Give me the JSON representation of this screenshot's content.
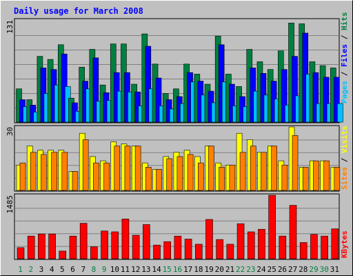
{
  "title": "Daily usage for March 2008",
  "colors": {
    "background": "#c0c0c0",
    "title": "#0000ff",
    "hits": "#008040",
    "files": "#0000ff",
    "pages": "#00c0ff",
    "visits": "#ffff00",
    "sites": "#ff8000",
    "kbytes": "#ff0000",
    "weekday_label": "#000000",
    "weekend_label": "#008040"
  },
  "legend": {
    "pages": "Pages",
    "files": "Files",
    "hits": "Hits",
    "sites": "Sites",
    "visits": "Visits",
    "kbytes": "KBytes",
    "sep": " / "
  },
  "chart_data": [
    {
      "type": "bar",
      "title": "Daily usage for March 2008",
      "panel": "hits-files-pages",
      "ymax_label": "131",
      "ylim": [
        0,
        131
      ],
      "categories": [
        "1",
        "2",
        "3",
        "4",
        "5",
        "6",
        "7",
        "8",
        "9",
        "10",
        "11",
        "12",
        "13",
        "14",
        "15",
        "16",
        "17",
        "18",
        "19",
        "20",
        "21",
        "22",
        "23",
        "24",
        "25",
        "26",
        "27",
        "28",
        "29",
        "30",
        "31"
      ],
      "weekend": [
        1,
        2,
        8,
        9,
        15,
        16,
        22,
        23,
        29,
        30
      ],
      "series": [
        {
          "name": "Hits",
          "values": [
            43,
            29,
            85,
            81,
            100,
            31,
            71,
            94,
            48,
            101,
            101,
            49,
            114,
            75,
            37,
            43,
            75,
            62,
            49,
            111,
            62,
            46,
            94,
            78,
            68,
            92,
            128,
            127,
            78,
            73,
            70
          ]
        },
        {
          "name": "Files",
          "values": [
            29,
            22,
            70,
            68,
            88,
            25,
            53,
            83,
            38,
            64,
            64,
            39,
            98,
            57,
            29,
            33,
            64,
            53,
            40,
            100,
            49,
            33,
            70,
            63,
            53,
            68,
            85,
            115,
            64,
            58,
            58
          ]
        },
        {
          "name": "Pages",
          "values": [
            20,
            13,
            37,
            48,
            46,
            14,
            43,
            27,
            28,
            40,
            39,
            21,
            43,
            21,
            17,
            24,
            52,
            35,
            25,
            52,
            21,
            20,
            40,
            35,
            30,
            22,
            34,
            62,
            24,
            24,
            24
          ]
        }
      ]
    },
    {
      "type": "bar",
      "panel": "visits-sites",
      "ymax_label": "30",
      "ylim": [
        0,
        30
      ],
      "categories": [
        "1",
        "2",
        "3",
        "4",
        "5",
        "6",
        "7",
        "8",
        "9",
        "10",
        "11",
        "12",
        "13",
        "14",
        "15",
        "16",
        "17",
        "18",
        "19",
        "20",
        "21",
        "22",
        "23",
        "24",
        "25",
        "26",
        "27",
        "28",
        "29",
        "30",
        "31"
      ],
      "series": [
        {
          "name": "Visits",
          "values": [
            12,
            21,
            19,
            19,
            19,
            9,
            27,
            16,
            14,
            23,
            22,
            21,
            13,
            10,
            16,
            18,
            19,
            16,
            21,
            13,
            12,
            27,
            24,
            18,
            21,
            14,
            30,
            11,
            14,
            14,
            11
          ]
        },
        {
          "name": "Sites",
          "values": [
            13,
            18,
            17,
            18,
            18,
            9,
            24,
            13,
            13,
            21,
            21,
            21,
            11,
            10,
            15,
            16,
            17,
            13,
            21,
            11,
            12,
            18,
            21,
            18,
            21,
            12,
            26,
            11,
            14,
            14,
            11
          ]
        }
      ]
    },
    {
      "type": "bar",
      "panel": "kbytes",
      "ymax_label": "1485",
      "ylim": [
        0,
        1485
      ],
      "categories": [
        "1",
        "2",
        "3",
        "4",
        "5",
        "6",
        "7",
        "8",
        "9",
        "10",
        "11",
        "12",
        "13",
        "14",
        "15",
        "16",
        "17",
        "18",
        "19",
        "20",
        "21",
        "22",
        "23",
        "24",
        "25",
        "26",
        "27",
        "28",
        "29",
        "30",
        "31"
      ],
      "series": [
        {
          "name": "KBytes",
          "values": [
            260,
            530,
            580,
            580,
            180,
            530,
            830,
            280,
            650,
            630,
            930,
            550,
            800,
            320,
            400,
            530,
            460,
            340,
            920,
            450,
            340,
            820,
            630,
            690,
            1485,
            530,
            1250,
            380,
            570,
            530,
            700
          ]
        }
      ]
    }
  ]
}
